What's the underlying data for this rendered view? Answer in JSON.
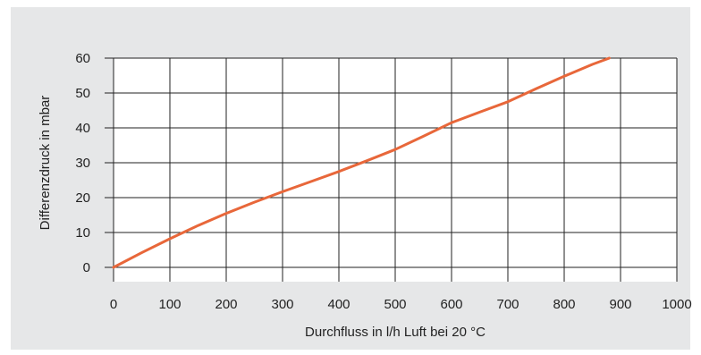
{
  "chart_data": {
    "type": "line",
    "title": "",
    "xlabel": "Durchfluss in l/h Luft bei 20 °C",
    "ylabel": "Differenzdruck in mbar",
    "xlim": [
      0,
      1000
    ],
    "ylim": [
      0,
      60
    ],
    "x_ticks": [
      "0",
      "100",
      "200",
      "300",
      "400",
      "500",
      "600",
      "700",
      "800",
      "900",
      "1000"
    ],
    "y_ticks": [
      "0",
      "10",
      "20",
      "30",
      "40",
      "50",
      "60"
    ],
    "grid": true,
    "series": [
      {
        "color": "#e8673a",
        "x": [
          0,
          50,
          100,
          150,
          200,
          250,
          300,
          350,
          400,
          450,
          500,
          550,
          600,
          650,
          700,
          750,
          800,
          850,
          880
        ],
        "y": [
          0,
          4.2,
          8.2,
          12.0,
          15.5,
          18.7,
          21.7,
          24.6,
          27.5,
          30.6,
          33.8,
          37.6,
          41.5,
          44.5,
          47.5,
          51.2,
          54.8,
          58.2,
          60
        ]
      }
    ]
  }
}
